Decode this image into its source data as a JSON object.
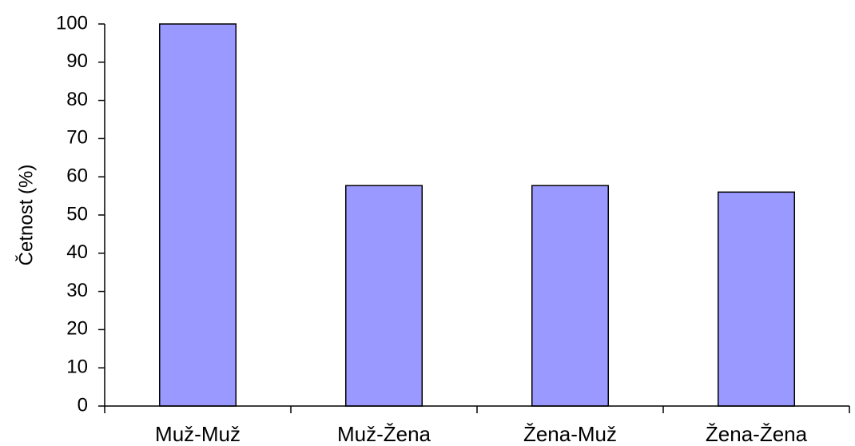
{
  "chart_data": {
    "type": "bar",
    "y_label": "Četnost (%)",
    "categories": [
      "Muž-Muž",
      "Muž-Žena",
      "Žena-Muž",
      "Žena-Žena"
    ],
    "values": [
      100,
      57.7,
      57.7,
      56
    ],
    "color": "#9999ff",
    "ylim": [
      0,
      100
    ],
    "yticks": [
      0,
      10,
      20,
      30,
      40,
      50,
      60,
      70,
      80,
      90,
      100
    ],
    "grid": false
  }
}
